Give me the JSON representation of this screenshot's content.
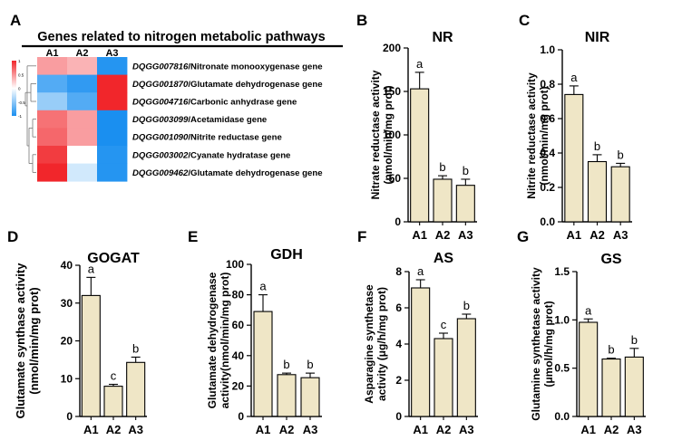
{
  "colors": {
    "bar_fill": "#efe6c6",
    "bar_stroke": "#000000",
    "heatmap_high": "#f1262b",
    "heatmap_mid": "#ffffff",
    "heatmap_low": "#1a8ff0"
  },
  "panel_letters": [
    "A",
    "B",
    "C",
    "D",
    "E",
    "F",
    "G"
  ],
  "heatmap": {
    "title": "Genes related to nitrogen metabolic pathways",
    "columns": [
      "A1",
      "A2",
      "A3"
    ],
    "color_scale": {
      "min": -1,
      "max": 1,
      "ticks": [
        "1",
        "0.5",
        "0",
        "-0.5",
        "-1"
      ]
    },
    "rows": [
      {
        "gene_id": "DQGG007816",
        "gene_name": "/Nitronate monooxygenase gene",
        "values": [
          0.45,
          0.35,
          -0.95
        ]
      },
      {
        "gene_id": "DQGG001870",
        "gene_name": "/Glutamate dehydrogenase gene",
        "values": [
          -0.75,
          -0.9,
          1.0
        ]
      },
      {
        "gene_id": "DQGG004716",
        "gene_name": "/Carbonic anhydrase gene",
        "values": [
          -0.45,
          -0.75,
          1.0
        ]
      },
      {
        "gene_id": "DQGG003099",
        "gene_name": "/Acetamidase gene",
        "values": [
          0.65,
          0.45,
          -1.0
        ]
      },
      {
        "gene_id": "DQGG001090",
        "gene_name": "/Nitrite reductase gene",
        "values": [
          0.7,
          0.45,
          -1.0
        ]
      },
      {
        "gene_id": "DQGG003002",
        "gene_name": "/Cyanate hydratase gene",
        "values": [
          0.9,
          0.0,
          -0.95
        ]
      },
      {
        "gene_id": "DQGG009462",
        "gene_name": "/Glutamate dehydrogenase gene",
        "values": [
          1.0,
          -0.2,
          -0.95
        ]
      }
    ]
  },
  "chart_data": [
    {
      "panel": "B",
      "type": "bar",
      "title": "NR",
      "ylabel": [
        "Nitrate reductase activity",
        "(nmol/min/mg prot)"
      ],
      "categories": [
        "A1",
        "A2",
        "A3"
      ],
      "values": [
        153,
        49,
        42
      ],
      "errors": [
        19,
        4,
        7
      ],
      "letters": [
        "a",
        "b",
        "b"
      ],
      "ylim": [
        0,
        200
      ],
      "yticks": [
        0,
        50,
        100,
        150,
        200
      ],
      "yticklabels": [
        "0",
        "50",
        "100",
        "150",
        "200"
      ]
    },
    {
      "panel": "C",
      "type": "bar",
      "title": "NIR",
      "ylabel": [
        "Nitrite reductase activity",
        "(nmol/min/mg prot)"
      ],
      "categories": [
        "A1",
        "A2",
        "A3"
      ],
      "values": [
        0.74,
        0.35,
        0.32
      ],
      "errors": [
        0.05,
        0.04,
        0.02
      ],
      "letters": [
        "a",
        "b",
        "b"
      ],
      "ylim": [
        0,
        1.0
      ],
      "yticks": [
        0,
        0.2,
        0.4,
        0.6,
        0.8,
        1.0
      ],
      "yticklabels": [
        "0.0",
        "0.2",
        "0.4",
        "0.6",
        "0.8",
        "1.0"
      ]
    },
    {
      "panel": "D",
      "type": "bar",
      "title": "GOGAT",
      "ylabel": [
        "Glutamate synthase activity",
        "(nmol/min/mg prot)"
      ],
      "categories": [
        "A1",
        "A2",
        "A3"
      ],
      "values": [
        32,
        8,
        14.3
      ],
      "errors": [
        4.8,
        0.5,
        1.4
      ],
      "letters": [
        "a",
        "c",
        "b"
      ],
      "ylim": [
        0,
        40
      ],
      "yticks": [
        0,
        10,
        20,
        30,
        40
      ],
      "yticklabels": [
        "0",
        "10",
        "20",
        "30",
        "40"
      ]
    },
    {
      "panel": "E",
      "type": "bar",
      "title": "GDH",
      "ylabel": [
        "Glutamate dehydrogenase",
        "activity(nmol/min/mg prot)"
      ],
      "categories": [
        "A1",
        "A2",
        "A3"
      ],
      "values": [
        69,
        27.5,
        25.5
      ],
      "errors": [
        11,
        1,
        3
      ],
      "letters": [
        "a",
        "b",
        "b"
      ],
      "ylim": [
        0,
        100
      ],
      "yticks": [
        0,
        20,
        40,
        60,
        80,
        100
      ],
      "yticklabels": [
        "0",
        "20",
        "40",
        "60",
        "80",
        "100"
      ]
    },
    {
      "panel": "F",
      "type": "bar",
      "title": "AS",
      "ylabel": [
        "Asparagine synthetase",
        "activity (μg/h/mg prot)"
      ],
      "categories": [
        "A1",
        "A2",
        "A3"
      ],
      "values": [
        7.1,
        4.3,
        5.4
      ],
      "errors": [
        0.45,
        0.3,
        0.25
      ],
      "letters": [
        "a",
        "c",
        "b"
      ],
      "ylim": [
        0,
        8
      ],
      "yticks": [
        0,
        2,
        4,
        6,
        8
      ],
      "yticklabels": [
        "0",
        "2",
        "4",
        "6",
        "8"
      ]
    },
    {
      "panel": "G",
      "type": "bar",
      "title": "GS",
      "ylabel": [
        "Glutamine synthetase activity",
        "(μmol/h/mg prot)"
      ],
      "categories": [
        "A1",
        "A2",
        "A3"
      ],
      "values": [
        0.975,
        0.595,
        0.615
      ],
      "errors": [
        0.035,
        0.008,
        0.09
      ],
      "letters": [
        "a",
        "b",
        "b"
      ],
      "ylim": [
        0,
        1.5
      ],
      "yticks": [
        0,
        0.5,
        1.0,
        1.5
      ],
      "yticklabels": [
        "0.0",
        "0.5",
        "1.0",
        "1.5"
      ]
    }
  ]
}
